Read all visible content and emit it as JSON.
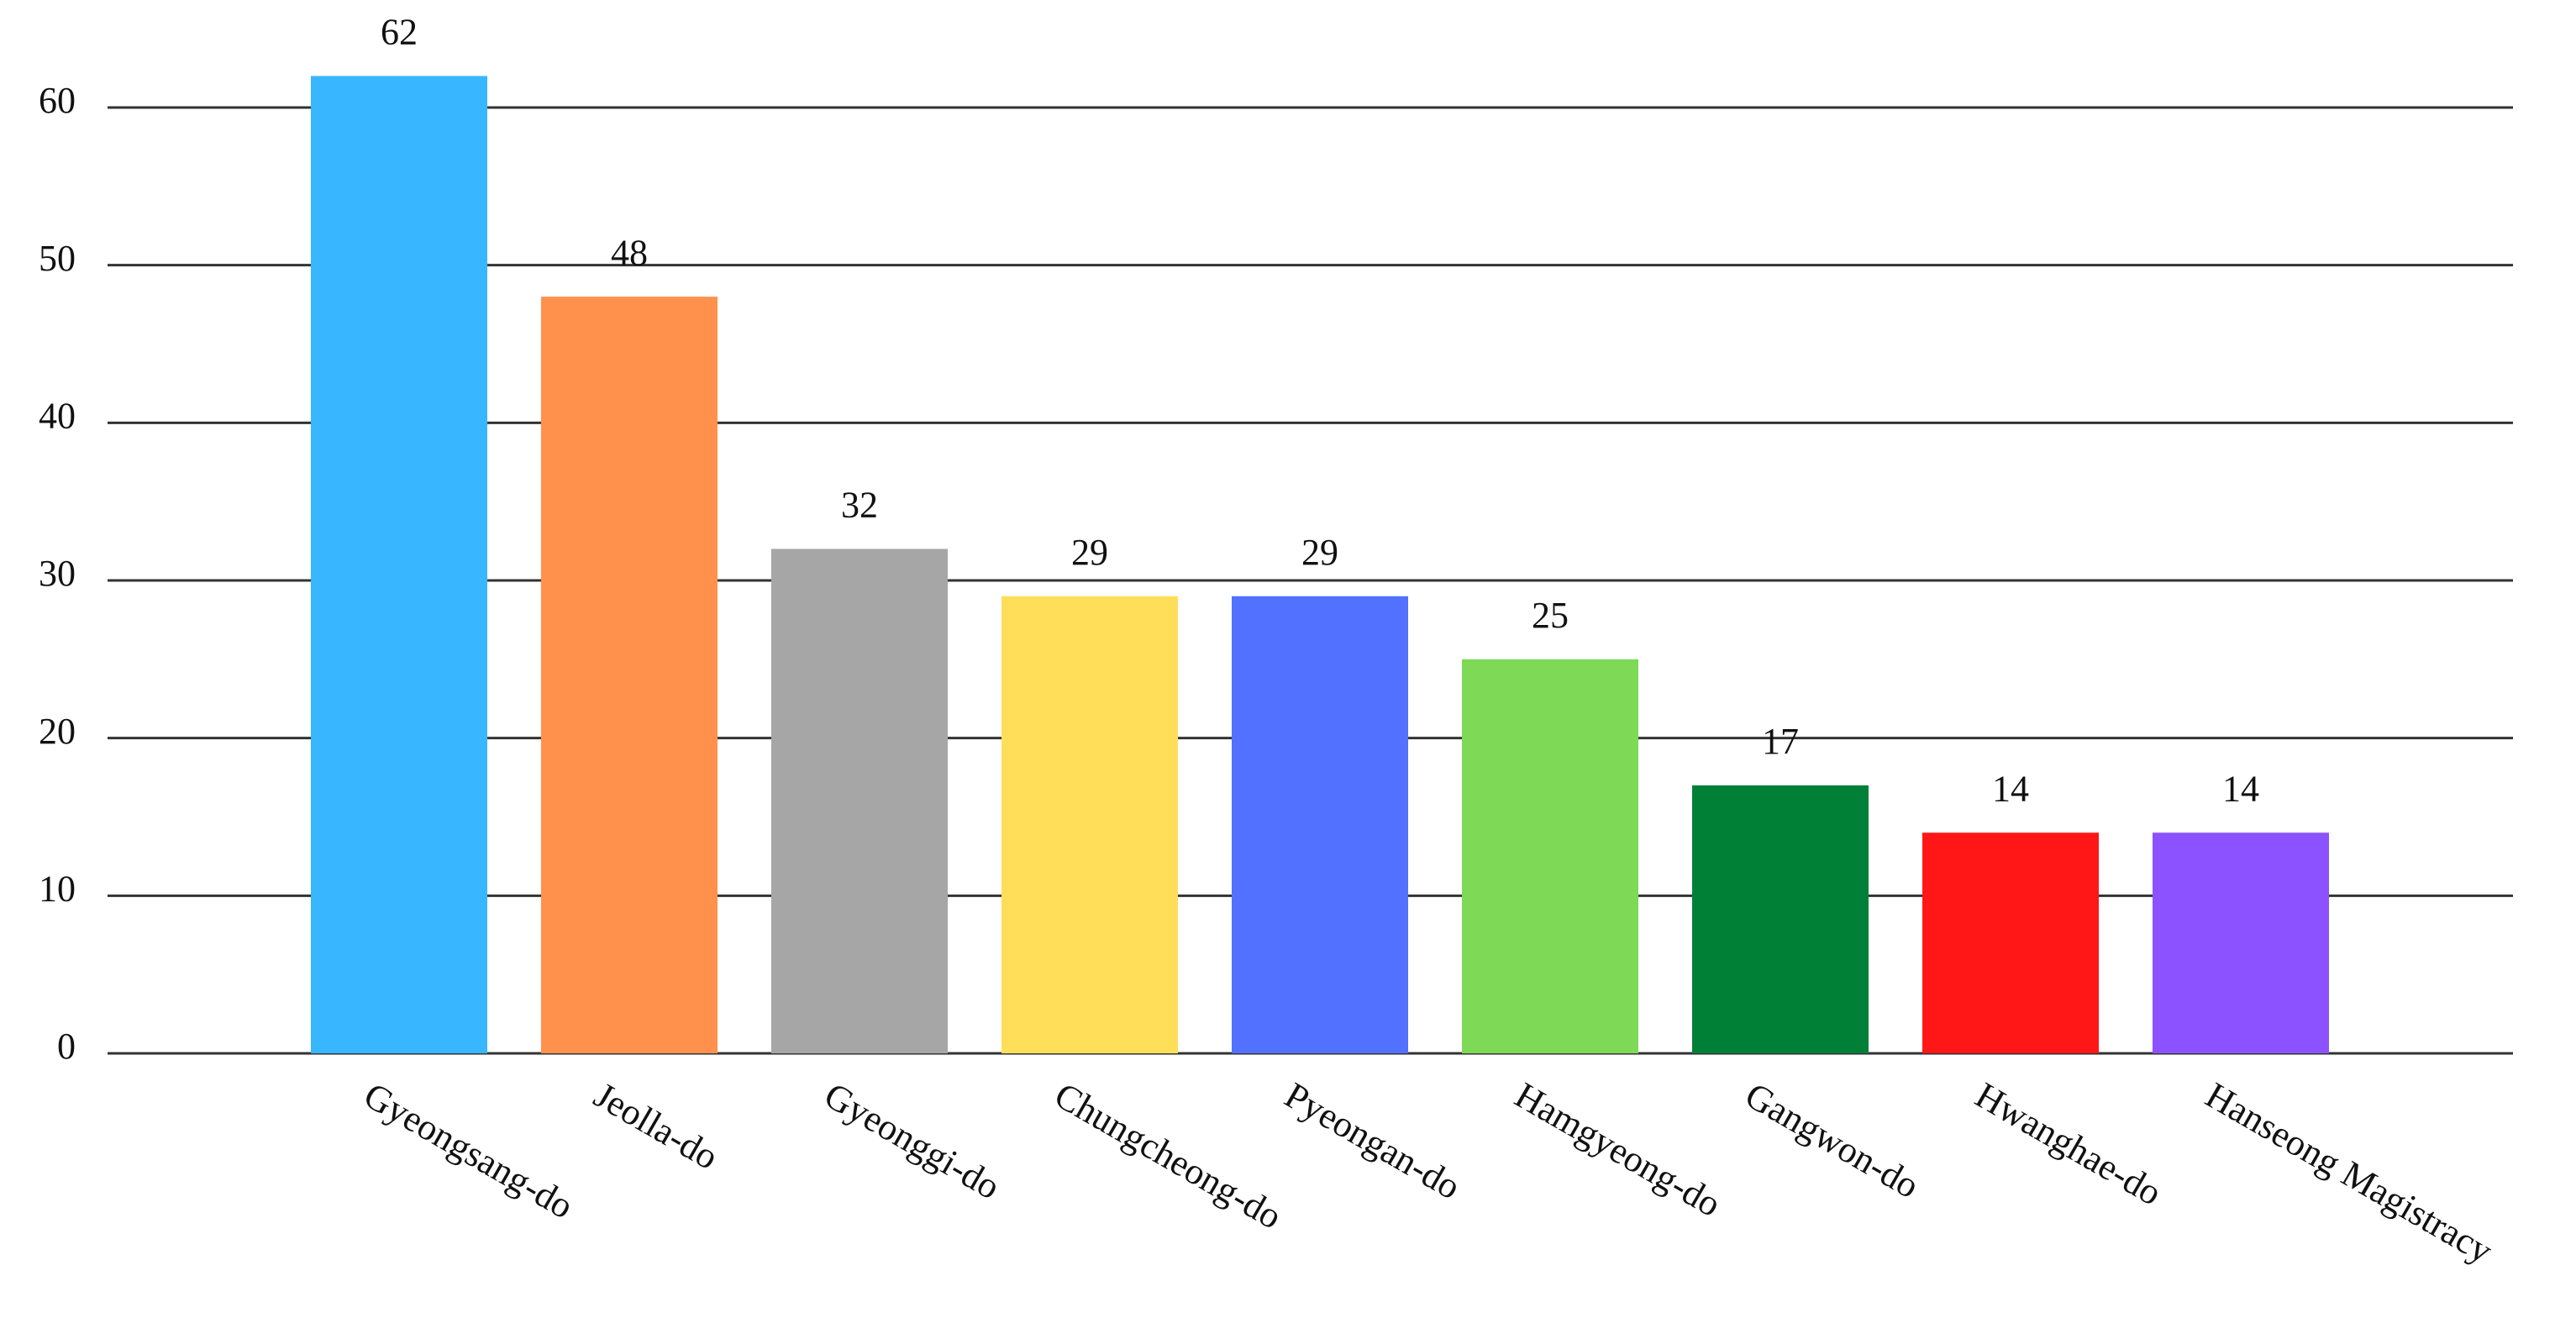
{
  "chart_data": {
    "type": "bar",
    "categories": [
      "Gyeongsang-do",
      "Jeolla-do",
      "Gyeonggi-do",
      "Chungcheong-do",
      "Pyeongan-do",
      "Hamgyeong-do",
      "Gangwon-do",
      "Hwanghae-do",
      "Hanseong Magistracy"
    ],
    "values": [
      62,
      48,
      32,
      29,
      29,
      25,
      17,
      14,
      14
    ],
    "colors": [
      "#38b6ff",
      "#ff914d",
      "#a6a6a6",
      "#ffde59",
      "#5271ff",
      "#7ed957",
      "#008037",
      "#ff1616",
      "#8c52ff"
    ],
    "ylim": [
      0,
      60
    ],
    "yticks": [
      0,
      10,
      20,
      30,
      40,
      50,
      60
    ],
    "grid": true
  }
}
